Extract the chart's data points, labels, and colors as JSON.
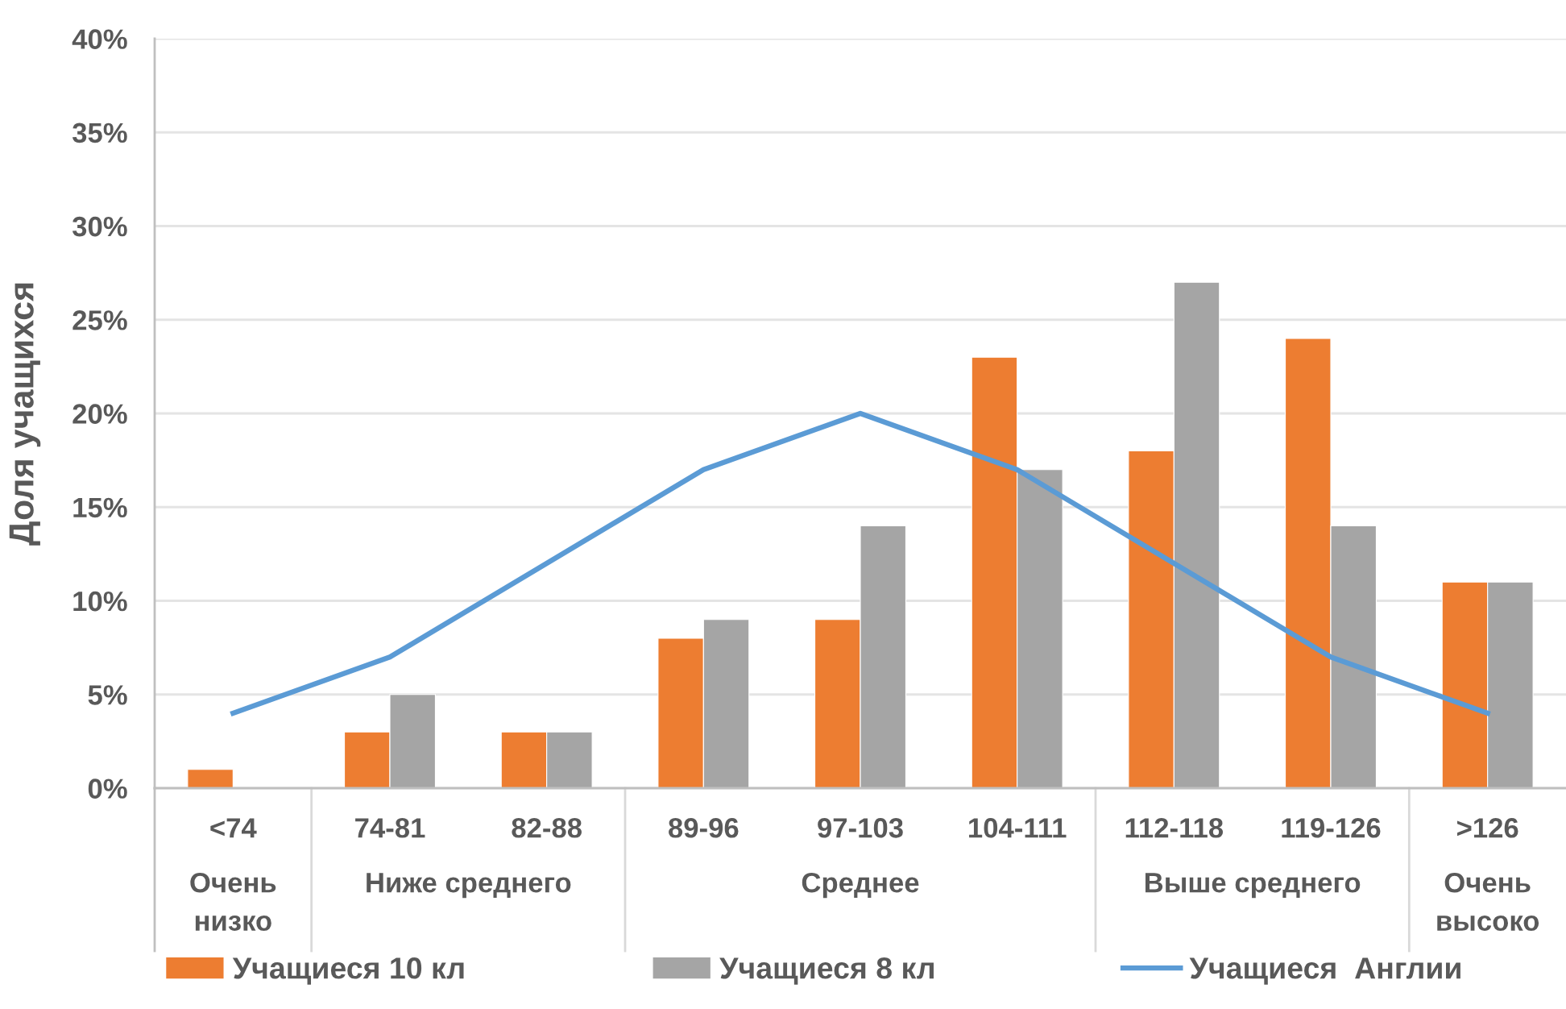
{
  "chart_data": {
    "type": "bar",
    "ylabel": "Доля учащихся",
    "categories": [
      "<74",
      "74-81",
      "82-88",
      "89-96",
      "97-103",
      "104-111",
      "112-118",
      "119-126",
      ">126"
    ],
    "series": [
      {
        "name": "Учащиеся 10 кл",
        "color": "#ed7d31",
        "values": [
          1,
          3,
          3,
          8,
          9,
          23,
          18,
          24,
          11
        ]
      },
      {
        "name": "Учащиеся 8 кл",
        "color": "#a5a5a5",
        "values": [
          null,
          5,
          3,
          9,
          14,
          17,
          27,
          14,
          11
        ]
      },
      {
        "name": "Учащиеся  Англии",
        "type": "line",
        "color": "#5b9bd5",
        "values": [
          4,
          7,
          12,
          17,
          20,
          17,
          12,
          7,
          4
        ]
      }
    ],
    "ylim": [
      0,
      40
    ],
    "yticks": [
      {
        "value": 0,
        "label": "0%"
      },
      {
        "value": 5,
        "label": "5%"
      },
      {
        "value": 10,
        "label": "10%"
      },
      {
        "value": 15,
        "label": "15%"
      },
      {
        "value": 20,
        "label": "20%"
      },
      {
        "value": 25,
        "label": "25%"
      },
      {
        "value": 30,
        "label": "30%"
      },
      {
        "value": 35,
        "label": "35%"
      },
      {
        "value": 40,
        "label": "40%"
      }
    ],
    "grid": "y",
    "legend": "bottom",
    "annotations": [
      "Очень низко",
      "Ниже среднего",
      "Среднее",
      "Выше среднего",
      "Очень высоко"
    ]
  }
}
